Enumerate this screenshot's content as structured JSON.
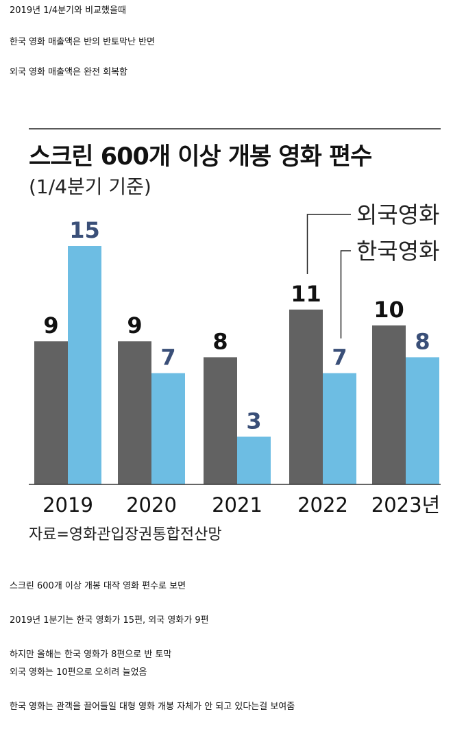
{
  "intro": {
    "line1": "2019년 1/4분기와 비교했을때",
    "line2": "한국 영화 매출액은 반의 반토막난 반면",
    "line3": "외국 영화 매출액은 완전 회복함"
  },
  "chart_data": {
    "type": "bar",
    "title": "스크린 600개 이상 개봉 영화 편수",
    "subtitle": "(1/4분기 기준)",
    "source": "자료=영화관입장권통합전산망",
    "categories": [
      "2019",
      "2020",
      "2021",
      "2022",
      "2023년"
    ],
    "series": [
      {
        "name": "외국영화",
        "values": [
          9,
          9,
          8,
          11,
          10
        ],
        "color": "#626262",
        "label_color": "#111111"
      },
      {
        "name": "한국영화",
        "values": [
          15,
          7,
          3,
          7,
          8
        ],
        "color": "#6dbde3",
        "label_color": "#3a4f78"
      }
    ],
    "ylim": [
      0,
      15
    ],
    "xlabel": "",
    "ylabel": "",
    "grid": false,
    "legend_position": "top-right"
  },
  "outro": {
    "line1": "스크린 600개 이상 개봉 대작 영화 편수로 보면",
    "line2": "2019년 1분기는 한국 영화가 15편, 외국 영화가 9편",
    "line3": "하지만 올해는 한국 영화가 8편으로 반 토막",
    "line4": "외국 영화는 10편으로 오히려 늘었음",
    "line5": "한국 영화는 관객을 끌어들일 대형 영화 개봉 자체가 안 되고 있다는걸 보여줌"
  }
}
